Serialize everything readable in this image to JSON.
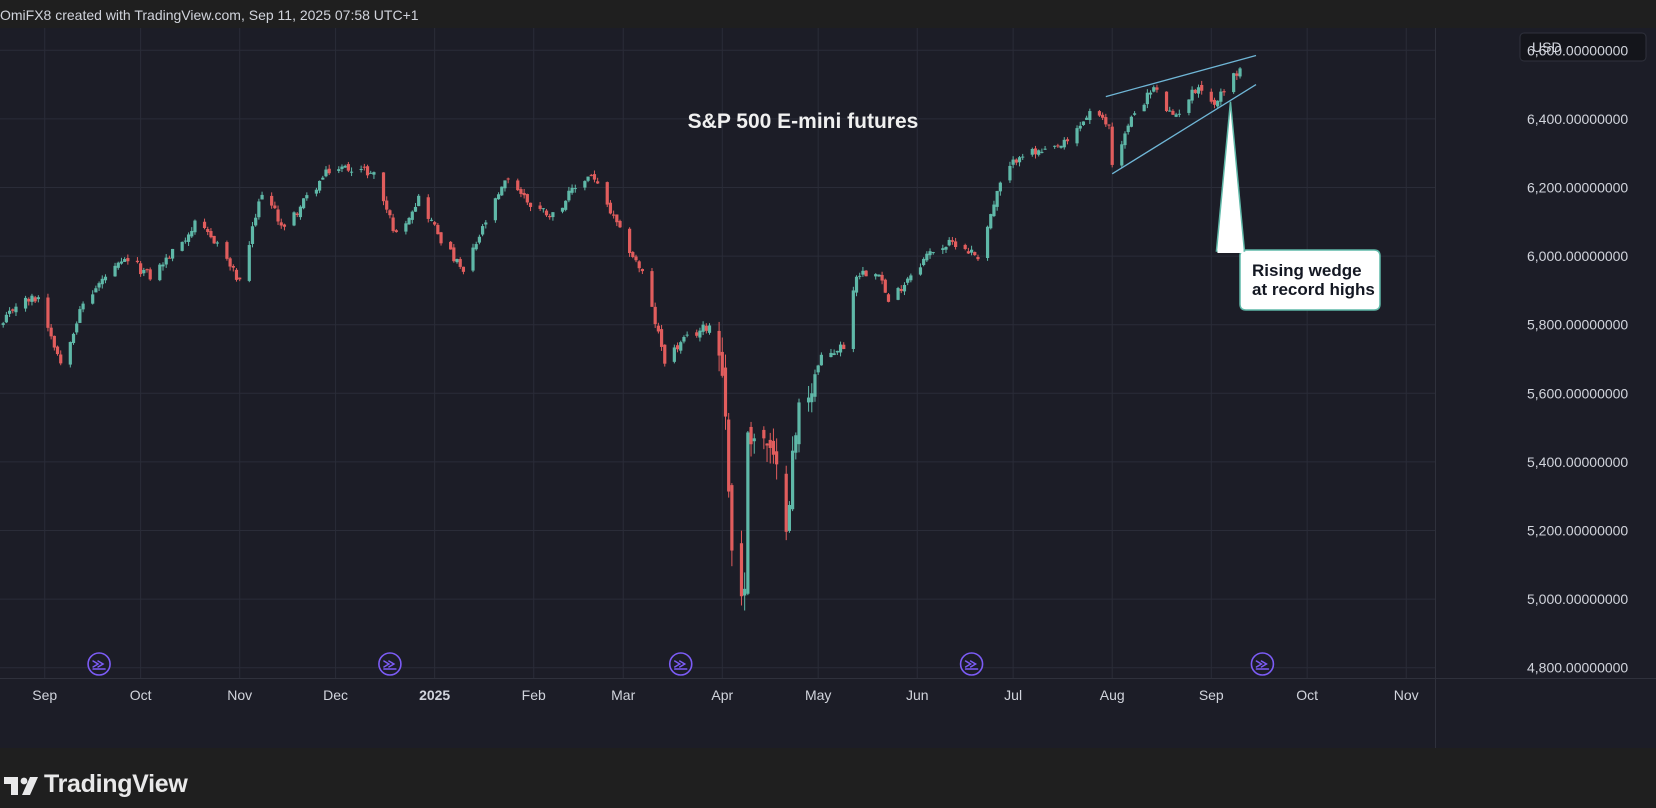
{
  "header": {
    "attribution": "OmiFX8 created with TradingView.com, Sep 11, 2025 07:58 UTC+1"
  },
  "footer": {
    "brand_name": "TradingView",
    "brand_icon": "tradingview-logo-icon"
  },
  "colors": {
    "background": "#1c1d27",
    "grid": "#2a2c38",
    "up_candle": "#5fb8a8",
    "down_candle": "#e15d5d",
    "trendline": "#6fb6d6",
    "annotation_border": "#5fb8a8",
    "event_marker": "#7c5cf6",
    "text": "#d1d4dc"
  },
  "chart_data": {
    "type": "candlestick",
    "title": "S&P 500 E-mini futures",
    "currency": "USD",
    "grid": true,
    "y_ticks": [
      "6,600.00000000",
      "6,400.00000000",
      "6,200.00000000",
      "6,000.00000000",
      "5,800.00000000",
      "5,600.00000000",
      "5,400.00000000",
      "5,200.00000000",
      "5,000.00000000",
      "4,800.00000000"
    ],
    "y_tick_values": [
      6600,
      6400,
      6200,
      6000,
      5800,
      5600,
      5400,
      5200,
      5000,
      4800
    ],
    "ylim": [
      4770,
      6665
    ],
    "x_ticks": [
      "Sep",
      "Oct",
      "Nov",
      "Dec",
      "2025",
      "Feb",
      "Mar",
      "Apr",
      "May",
      "Jun",
      "Jul",
      "Aug",
      "Sep",
      "Oct",
      "Nov"
    ],
    "x_tick_dates": [
      "2024-09-01",
      "2024-10-01",
      "2024-11-01",
      "2024-12-01",
      "2025-01-01",
      "2025-02-01",
      "2025-03-01",
      "2025-04-01",
      "2025-05-01",
      "2025-06-01",
      "2025-07-01",
      "2025-08-01",
      "2025-09-01",
      "2025-10-01",
      "2025-11-01"
    ],
    "x_tick_bold": [
      false,
      false,
      false,
      false,
      true,
      false,
      false,
      false,
      false,
      false,
      false,
      false,
      false,
      false,
      false
    ],
    "xlim": [
      "2024-08-18",
      "2025-11-10"
    ],
    "closes": [
      [
        "2024-08-19",
        5800
      ],
      [
        "2024-08-23",
        5860
      ],
      [
        "2024-08-30",
        5880
      ],
      [
        "2024-09-06",
        5690
      ],
      [
        "2024-09-13",
        5860
      ],
      [
        "2024-09-20",
        5940
      ],
      [
        "2024-09-27",
        5990
      ],
      [
        "2024-10-04",
        5940
      ],
      [
        "2024-10-11",
        6010
      ],
      [
        "2024-10-18",
        6090
      ],
      [
        "2024-10-25",
        6040
      ],
      [
        "2024-11-01",
        5920
      ],
      [
        "2024-11-08",
        6190
      ],
      [
        "2024-11-15",
        6080
      ],
      [
        "2024-11-22",
        6170
      ],
      [
        "2024-11-29",
        6250
      ],
      [
        "2024-12-06",
        6260
      ],
      [
        "2024-12-13",
        6240
      ],
      [
        "2024-12-20",
        6060
      ],
      [
        "2024-12-27",
        6170
      ],
      [
        "2025-01-03",
        6050
      ],
      [
        "2025-01-10",
        5950
      ],
      [
        "2025-01-17",
        6100
      ],
      [
        "2025-01-24",
        6230
      ],
      [
        "2025-01-31",
        6150
      ],
      [
        "2025-02-07",
        6120
      ],
      [
        "2025-02-14",
        6200
      ],
      [
        "2025-02-19",
        6240
      ],
      [
        "2025-02-28",
        6070
      ],
      [
        "2025-03-07",
        5950
      ],
      [
        "2025-03-14",
        5700
      ],
      [
        "2025-03-21",
        5760
      ],
      [
        "2025-03-28",
        5800
      ],
      [
        "2025-04-01",
        5700
      ],
      [
        "2025-04-04",
        5150
      ],
      [
        "2025-04-08",
        5000
      ],
      [
        "2025-04-09",
        5500
      ],
      [
        "2025-04-15",
        5450
      ],
      [
        "2025-04-21",
        5250
      ],
      [
        "2025-04-25",
        5550
      ],
      [
        "2025-05-02",
        5700
      ],
      [
        "2025-05-09",
        5740
      ],
      [
        "2025-05-13",
        5950
      ],
      [
        "2025-05-20",
        5960
      ],
      [
        "2025-05-23",
        5860
      ],
      [
        "2025-05-30",
        5950
      ],
      [
        "2025-06-06",
        6020
      ],
      [
        "2025-06-13",
        6040
      ],
      [
        "2025-06-20",
        6000
      ],
      [
        "2025-06-27",
        6210
      ],
      [
        "2025-07-03",
        6300
      ],
      [
        "2025-07-11",
        6300
      ],
      [
        "2025-07-18",
        6330
      ],
      [
        "2025-07-25",
        6420
      ],
      [
        "2025-07-31",
        6380
      ],
      [
        "2025-08-01",
        6270
      ],
      [
        "2025-08-08",
        6420
      ],
      [
        "2025-08-14",
        6490
      ],
      [
        "2025-08-20",
        6400
      ],
      [
        "2025-08-28",
        6500
      ],
      [
        "2025-09-02",
        6440
      ],
      [
        "2025-09-05",
        6490
      ],
      [
        "2025-09-10",
        6545
      ]
    ],
    "trendlines": [
      {
        "name": "upper",
        "from": [
          "2025-07-30",
          6465
        ],
        "to": [
          "2025-09-15",
          6585
        ]
      },
      {
        "name": "lower",
        "from": [
          "2025-08-01",
          6240
        ],
        "to": [
          "2025-09-15",
          6500
        ]
      }
    ],
    "annotation": {
      "text_lines": [
        "Rising wedge",
        "at record highs"
      ],
      "pointer_date": "2025-09-07",
      "pointer_value": 6450
    },
    "event_marker_dates": [
      "2024-09-18",
      "2024-12-18",
      "2025-03-19",
      "2025-06-18",
      "2025-09-17"
    ]
  }
}
